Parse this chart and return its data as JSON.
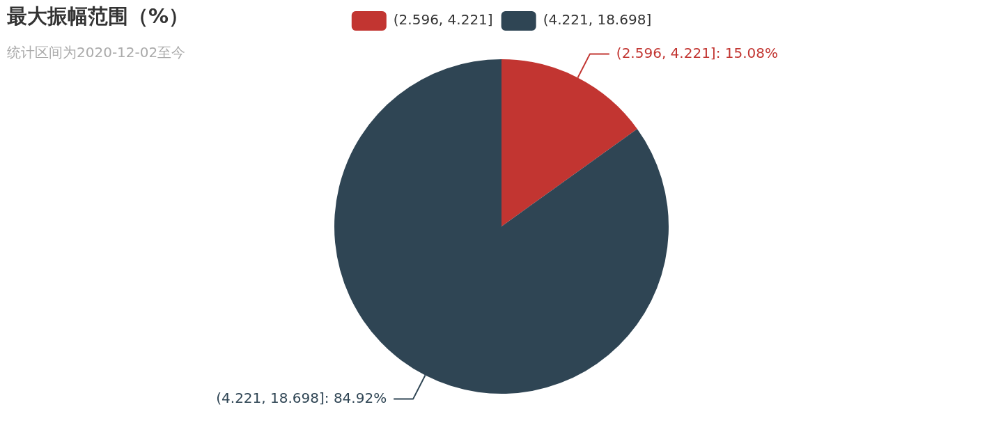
{
  "chart_data": {
    "type": "pie",
    "title": "最大振幅范围（%）",
    "subtitle": "统计区间为2020-12-02至今",
    "categories": [
      "(2.596, 4.221]",
      "(4.221, 18.698]"
    ],
    "values": [
      15.08,
      84.92
    ],
    "colors": [
      "#c23531",
      "#2f4554"
    ],
    "value_labels": [
      "(2.596, 4.221]: 15.08%",
      "(4.221, 18.698]: 84.92%"
    ],
    "legend": "top"
  }
}
